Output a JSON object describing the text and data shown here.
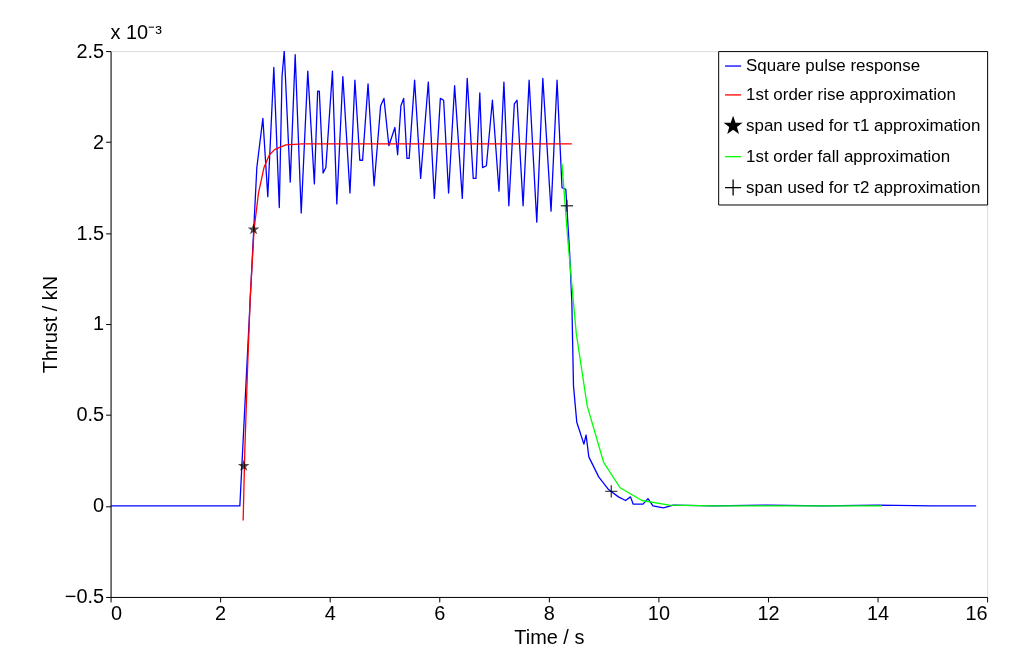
{
  "chart_data": {
    "type": "line",
    "xlabel": "Time / s",
    "ylabel": "Thrust / kN",
    "annotations": [
      "x 10⁻³"
    ],
    "xlim": [
      0,
      16
    ],
    "xticks": [
      0,
      2,
      4,
      6,
      8,
      10,
      12,
      14,
      16
    ],
    "ylim": [
      -0.5,
      2.5
    ],
    "yticks": [
      -0.5,
      0,
      0.5,
      1,
      1.5,
      2,
      2.5
    ],
    "grid": false,
    "legend": "top right",
    "series": [
      {
        "name": "Square pulse response",
        "color": "#0000ff",
        "x": [
          0,
          2.36,
          2.67,
          2.78,
          2.87,
          2.98,
          3.08,
          3.13,
          3.17,
          3.28,
          3.37,
          3.48,
          3.6,
          3.72,
          3.78,
          3.81,
          3.88,
          3.93,
          4.05,
          4.13,
          4.24,
          4.37,
          4.46,
          4.55,
          4.6,
          4.7,
          4.81,
          4.93,
          4.99,
          5.08,
          5.19,
          5.24,
          5.3,
          5.35,
          5.41,
          5.45,
          5.55,
          5.66,
          5.8,
          5.91,
          6.02,
          6.08,
          6.17,
          6.28,
          6.42,
          6.51,
          6.62,
          6.67,
          6.74,
          6.79,
          6.86,
          6.97,
          7.09,
          7.18,
          7.27,
          7.37,
          7.42,
          7.53,
          7.64,
          7.78,
          7.89,
          8.04,
          8.15,
          8.24,
          8.31,
          8.38,
          8.42,
          8.45,
          8.51,
          8.64,
          8.68,
          8.73,
          8.91,
          9.09,
          9.27,
          9.4,
          9.49,
          9.54,
          9.72,
          9.81,
          9.9,
          10.09,
          10.27,
          11,
          12,
          13,
          14,
          15,
          15.8
        ],
        "values": [
          0,
          0,
          1.86,
          2.13,
          1.7,
          2.41,
          1.64,
          2.36,
          2.5,
          1.78,
          2.48,
          1.61,
          2.39,
          1.77,
          2.28,
          2.28,
          1.83,
          1.86,
          2.39,
          1.66,
          2.36,
          1.72,
          2.34,
          1.9,
          1.9,
          2.32,
          1.76,
          2.2,
          2.24,
          1.98,
          2.08,
          1.93,
          2.2,
          2.24,
          1.91,
          1.91,
          2.34,
          1.8,
          2.33,
          1.69,
          2.24,
          2.23,
          1.72,
          2.31,
          1.69,
          2.35,
          1.8,
          1.8,
          2.27,
          1.86,
          1.87,
          2.23,
          1.73,
          2.33,
          1.65,
          2.21,
          2.23,
          1.65,
          2.34,
          1.56,
          2.35,
          1.62,
          2.34,
          1.75,
          1.74,
          1.39,
          1.12,
          0.66,
          0.46,
          0.34,
          0.39,
          0.27,
          0.16,
          0.09,
          0.05,
          0.03,
          0.05,
          0.01,
          0.01,
          0.04,
          0,
          -0.01,
          0.005,
          0,
          0.005,
          0,
          0.005,
          0,
          0
        ]
      },
      {
        "name": "1st order rise approximation",
        "color": "#ff0000",
        "x": [
          2.42,
          2.45,
          2.5,
          2.55,
          2.62,
          2.7,
          2.8,
          2.9,
          3.0,
          3.2,
          3.5,
          8.42
        ],
        "values": [
          -0.08,
          0.3,
          0.75,
          1.15,
          1.52,
          1.72,
          1.86,
          1.93,
          1.96,
          1.985,
          1.99,
          1.99
        ]
      },
      {
        "name": "span used for τ1 approximation",
        "color": "#000000",
        "type": "scatter",
        "marker": "star",
        "x": [
          2.43,
          2.61
        ],
        "values": [
          0.22,
          1.52
        ]
      },
      {
        "name": "1st order fall approximation",
        "color": "#00ff00",
        "x": [
          8.24,
          8.35,
          8.5,
          8.7,
          9.0,
          9.3,
          9.7,
          10.2,
          11,
          14.08
        ],
        "values": [
          1.88,
          1.45,
          0.95,
          0.55,
          0.24,
          0.1,
          0.03,
          0.005,
          0,
          0
        ]
      },
      {
        "name": "span used for τ2 approximation",
        "color": "#000000",
        "type": "scatter",
        "marker": "cross",
        "x": [
          8.33,
          9.14
        ],
        "values": [
          1.65,
          0.08
        ]
      }
    ]
  }
}
